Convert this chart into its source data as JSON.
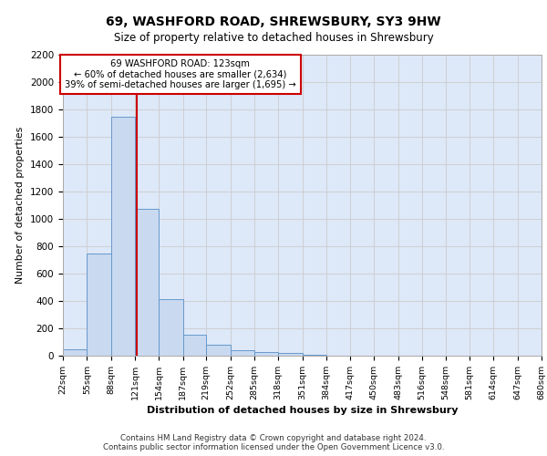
{
  "title1": "69, WASHFORD ROAD, SHREWSBURY, SY3 9HW",
  "title2": "Size of property relative to detached houses in Shrewsbury",
  "xlabel": "Distribution of detached houses by size in Shrewsbury",
  "ylabel": "Number of detached properties",
  "footnote1": "Contains HM Land Registry data © Crown copyright and database right 2024.",
  "footnote2": "Contains public sector information licensed under the Open Government Licence v3.0.",
  "property_size": 123,
  "annotation_line1": "69 WASHFORD ROAD: 123sqm",
  "annotation_line2": "← 60% of detached houses are smaller (2,634)",
  "annotation_line3": "39% of semi-detached houses are larger (1,695) →",
  "bar_edges": [
    22,
    55,
    88,
    121,
    154,
    187,
    219,
    252,
    285,
    318,
    351,
    384,
    417,
    450,
    483,
    516,
    548,
    581,
    614,
    647,
    680
  ],
  "bar_heights": [
    50,
    750,
    1750,
    1075,
    415,
    155,
    80,
    40,
    30,
    20,
    5,
    3,
    2,
    0,
    0,
    0,
    0,
    0,
    0,
    0
  ],
  "bar_color": "#c9d9f0",
  "bar_edge_color": "#6699cc",
  "red_line_x": 123,
  "red_line_color": "#cc0000",
  "annotation_box_color": "#cc0000",
  "grid_color": "#cccccc",
  "plot_bg_color": "#dde8f8",
  "ylim": [
    0,
    2200
  ],
  "yticks": [
    0,
    200,
    400,
    600,
    800,
    1000,
    1200,
    1400,
    1600,
    1800,
    2000,
    2200
  ]
}
